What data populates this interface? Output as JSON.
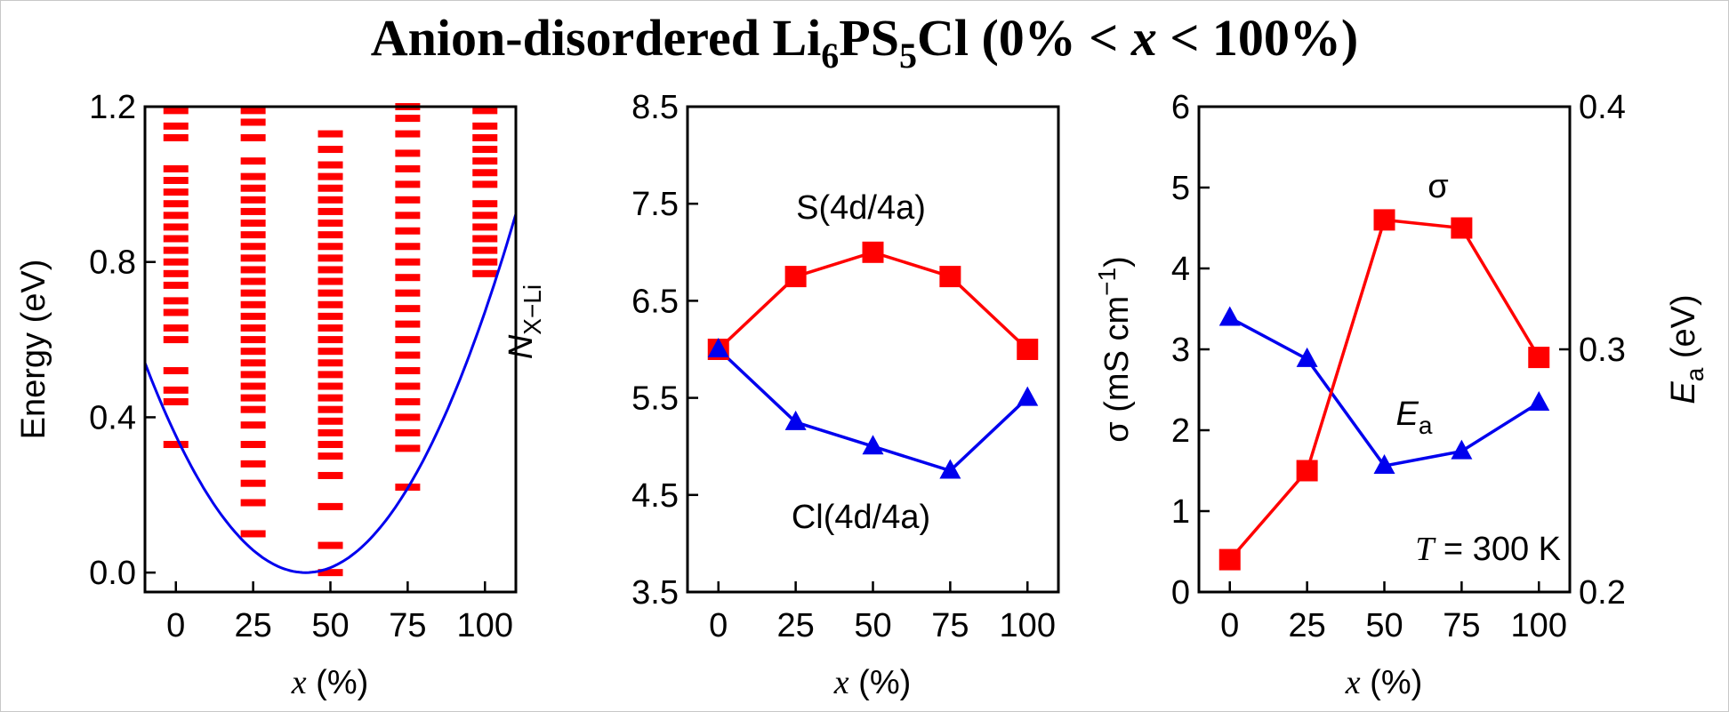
{
  "figure": {
    "title_main": "Anion-disordered Li",
    "title_sub1": "6",
    "title_mid": "PS",
    "title_sub2": "5",
    "title_tail": "Cl (0% < ",
    "title_x": "x",
    "title_end": " < 100%)"
  },
  "colors": {
    "red": "#ff0000",
    "blue": "#0000ee"
  },
  "chart_data": [
    {
      "type": "scatter",
      "panel": "energy",
      "xlabel_var": "x",
      "xlabel_unit": " (%)",
      "ylabel": "Energy (eV)",
      "xlim": [
        -10,
        110
      ],
      "ylim": [
        -0.05,
        1.2
      ],
      "xticks": [
        "0",
        "25",
        "50",
        "75",
        "100"
      ],
      "yticks": [
        "0.0",
        "0.4",
        "0.8",
        "1.2"
      ],
      "ytick_values": [
        0.0,
        0.4,
        0.8,
        1.2
      ],
      "levels": [
        {
          "x": 0,
          "energies": [
            0.33,
            0.44,
            0.47,
            0.52,
            0.6,
            0.63,
            0.67,
            0.7,
            0.74,
            0.77,
            0.8,
            0.83,
            0.86,
            0.89,
            0.92,
            0.95,
            0.98,
            1.01,
            1.04,
            1.12,
            1.15,
            1.19
          ]
        },
        {
          "x": 25,
          "energies": [
            0.1,
            0.18,
            0.23,
            0.28,
            0.33,
            0.38,
            0.42,
            0.45,
            0.48,
            0.51,
            0.54,
            0.57,
            0.6,
            0.63,
            0.66,
            0.69,
            0.72,
            0.75,
            0.78,
            0.81,
            0.84,
            0.87,
            0.9,
            0.93,
            0.96,
            0.99,
            1.02,
            1.06,
            1.12,
            1.16,
            1.19
          ]
        },
        {
          "x": 50,
          "energies": [
            0.0,
            0.07,
            0.17,
            0.25,
            0.3,
            0.33,
            0.36,
            0.39,
            0.42,
            0.45,
            0.48,
            0.51,
            0.54,
            0.57,
            0.6,
            0.63,
            0.66,
            0.69,
            0.72,
            0.75,
            0.78,
            0.81,
            0.84,
            0.87,
            0.9,
            0.93,
            0.96,
            0.99,
            1.02,
            1.05,
            1.09,
            1.13
          ]
        },
        {
          "x": 75,
          "energies": [
            0.22,
            0.32,
            0.36,
            0.4,
            0.44,
            0.48,
            0.52,
            0.56,
            0.6,
            0.64,
            0.68,
            0.72,
            0.76,
            0.8,
            0.84,
            0.88,
            0.92,
            0.96,
            1.0,
            1.04,
            1.08,
            1.13,
            1.17,
            1.2
          ]
        },
        {
          "x": 100,
          "energies": [
            0.77,
            0.8,
            0.83,
            0.86,
            0.89,
            0.92,
            0.95,
            1.0,
            1.03,
            1.06,
            1.09,
            1.12,
            1.15,
            1.19
          ]
        }
      ],
      "fit_curve": {
        "type": "parabola",
        "vertex_x": 42,
        "vertex_y": 0.0,
        "y_at_x_minus10": 0.54
      }
    },
    {
      "type": "line",
      "panel": "coordination",
      "xlabel_var": "x",
      "xlabel_unit": " (%)",
      "ylabel_var": "N",
      "ylabel_sub": "X−Li",
      "xlim": [
        -10,
        110
      ],
      "ylim": [
        3.5,
        8.5
      ],
      "xticks": [
        "0",
        "25",
        "50",
        "75",
        "100"
      ],
      "yticks": [
        "3.5",
        "4.5",
        "5.5",
        "6.5",
        "7.5",
        "8.5"
      ],
      "ytick_values": [
        3.5,
        4.5,
        5.5,
        6.5,
        7.5,
        8.5
      ],
      "x": [
        0,
        25,
        50,
        75,
        100
      ],
      "series": [
        {
          "name": "S(4d/4a)",
          "values": [
            6.0,
            6.75,
            7.0,
            6.75,
            6.0
          ],
          "marker": "square"
        },
        {
          "name": "Cl(4d/4a)",
          "values": [
            6.0,
            5.25,
            5.0,
            4.75,
            5.5
          ],
          "marker": "triangle"
        }
      ]
    },
    {
      "type": "line",
      "panel": "conductivity",
      "xlabel_var": "x",
      "xlabel_unit": " (%)",
      "ylabel_left": "σ (mS cm",
      "ylabel_left_sup": "−1",
      "ylabel_left_close": ")",
      "ylabel_right_var": "E",
      "ylabel_right_sub": "a",
      "ylabel_right_unit": " (eV)",
      "xlim": [
        -10,
        110
      ],
      "ylim_left": [
        0,
        6
      ],
      "ylim_right": [
        0.2,
        0.4
      ],
      "xticks": [
        "0",
        "25",
        "50",
        "75",
        "100"
      ],
      "yticks_left": [
        "0",
        "1",
        "2",
        "3",
        "4",
        "5",
        "6"
      ],
      "yticks_left_values": [
        0,
        1,
        2,
        3,
        4,
        5,
        6
      ],
      "yticks_right": [
        "0.2",
        "0.3",
        "0.4"
      ],
      "yticks_right_values": [
        0.2,
        0.3,
        0.4
      ],
      "x": [
        0,
        25,
        50,
        75,
        100
      ],
      "series": [
        {
          "name": "σ",
          "axis": "left",
          "values": [
            0.4,
            1.5,
            4.6,
            4.5,
            2.9
          ],
          "marker": "square"
        },
        {
          "name_var": "E",
          "name_sub": "a",
          "axis": "right",
          "values": [
            0.313,
            0.296,
            0.252,
            0.258,
            0.278
          ],
          "marker": "triangle"
        }
      ],
      "annotation_var": "T",
      "annotation_rest": " = 300 K"
    }
  ]
}
